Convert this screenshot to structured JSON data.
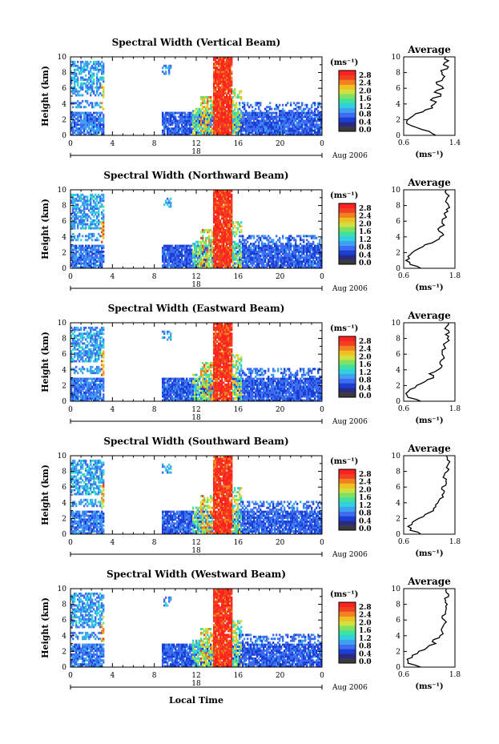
{
  "figure": {
    "x_axis_label": "Local Time",
    "date_label": "Aug 2006",
    "date_day": "18",
    "colorbar_unit": "(ms⁻¹)",
    "colorbar_ticks": [
      "2.8",
      "2.4",
      "2.0",
      "1.6",
      "1.2",
      "0.8",
      "0.4",
      "0.0"
    ],
    "colormap": [
      "#2a2a80",
      "#1b3fd4",
      "#3e6cf0",
      "#3fa0f0",
      "#30d0e0",
      "#40e0a0",
      "#80e060",
      "#d0e040",
      "#f0c020",
      "#f08020",
      "#f04020",
      "#ff2020"
    ]
  },
  "chart_data": [
    {
      "type": "heatmap",
      "title": "Spectral Width (Vertical Beam)",
      "ylabel": "Height (km)",
      "xlim": [
        0,
        24
      ],
      "ylim": [
        0,
        10
      ],
      "x_ticks": [
        "0",
        "4",
        "8",
        "12",
        "16",
        "20",
        "0"
      ],
      "y_ticks": [
        "0",
        "2",
        "4",
        "6",
        "8",
        "10"
      ],
      "colorbar_range": [
        0.0,
        3.0
      ],
      "average_profile": {
        "title": "Average",
        "xlabel": "(ms⁻¹)",
        "xlim": [
          0.6,
          1.4
        ],
        "x_ticks": [
          "0.6",
          "1.4"
        ],
        "y_ticks": [
          "0",
          "2",
          "4",
          "6",
          "8",
          "10"
        ],
        "height_km": [
          0,
          0.5,
          1,
          1.5,
          2,
          2.5,
          3,
          3.5,
          4,
          4.5,
          5,
          5.5,
          6,
          6.5,
          7,
          7.5,
          8,
          8.5,
          9,
          9.5,
          10
        ],
        "values": [
          1.1,
          1.0,
          0.8,
          0.65,
          0.66,
          0.75,
          0.9,
          1.05,
          1.08,
          1.02,
          1.18,
          1.08,
          1.22,
          1.12,
          1.2,
          1.24,
          1.2,
          1.28,
          1.22,
          1.3,
          1.25
        ]
      }
    },
    {
      "type": "heatmap",
      "title": "Spectral Width (Northward Beam)",
      "ylabel": "Height (km)",
      "xlim": [
        0,
        24
      ],
      "ylim": [
        0,
        10
      ],
      "x_ticks": [
        "0",
        "4",
        "8",
        "12",
        "16",
        "20",
        "0"
      ],
      "y_ticks": [
        "0",
        "2",
        "4",
        "6",
        "8",
        "10"
      ],
      "colorbar_range": [
        0.0,
        3.0
      ],
      "average_profile": {
        "title": "Average",
        "xlabel": "(ms⁻¹)",
        "xlim": [
          0.6,
          1.8
        ],
        "x_ticks": [
          "0.6",
          "1.8"
        ],
        "y_ticks": [
          "0",
          "2",
          "4",
          "6",
          "8",
          "10"
        ],
        "height_km": [
          0,
          0.5,
          1,
          1.5,
          2,
          2.5,
          3,
          3.5,
          4,
          4.5,
          5,
          5.5,
          6,
          6.5,
          7,
          7.5,
          8,
          8.5,
          9,
          9.5,
          10
        ],
        "values": [
          1.0,
          0.75,
          0.65,
          0.7,
          0.8,
          0.95,
          1.1,
          1.35,
          1.45,
          1.5,
          1.4,
          1.55,
          1.5,
          1.6,
          1.55,
          1.6,
          1.65,
          1.58,
          1.62,
          1.6,
          1.6
        ]
      }
    },
    {
      "type": "heatmap",
      "title": "Spectral Width (Eastward Beam)",
      "ylabel": "Height (km)",
      "xlim": [
        0,
        24
      ],
      "ylim": [
        0,
        10
      ],
      "x_ticks": [
        "0",
        "4",
        "8",
        "12",
        "16",
        "20",
        "0"
      ],
      "y_ticks": [
        "0",
        "2",
        "4",
        "6",
        "8",
        "10"
      ],
      "colorbar_range": [
        0.0,
        3.0
      ],
      "average_profile": {
        "title": "Average",
        "xlabel": "(ms⁻¹)",
        "xlim": [
          0.6,
          1.8
        ],
        "x_ticks": [
          "0.6",
          "1.8"
        ],
        "y_ticks": [
          "0",
          "2",
          "4",
          "6",
          "8",
          "10"
        ],
        "height_km": [
          0,
          0.5,
          1,
          1.5,
          2,
          2.5,
          3,
          3.5,
          4,
          4.5,
          5,
          5.5,
          6,
          6.5,
          7,
          7.5,
          8,
          8.5,
          9,
          9.5,
          10
        ],
        "values": [
          1.0,
          0.7,
          0.65,
          0.75,
          0.9,
          1.1,
          1.3,
          1.2,
          1.4,
          1.5,
          1.45,
          1.55,
          1.5,
          1.5,
          1.55,
          1.6,
          1.62,
          1.58,
          1.65,
          1.6,
          1.65
        ]
      }
    },
    {
      "type": "heatmap",
      "title": "Spectral Width (Southward Beam)",
      "ylabel": "Height (km)",
      "xlim": [
        0,
        24
      ],
      "ylim": [
        0,
        10
      ],
      "x_ticks": [
        "0",
        "4",
        "8",
        "12",
        "16",
        "20",
        "0"
      ],
      "y_ticks": [
        "0",
        "2",
        "4",
        "6",
        "8",
        "10"
      ],
      "colorbar_range": [
        0.0,
        3.0
      ],
      "average_profile": {
        "title": "Average",
        "xlabel": "(ms⁻¹)",
        "xlim": [
          0.6,
          1.8
        ],
        "x_ticks": [
          "0.6",
          "1.8"
        ],
        "y_ticks": [
          "0",
          "2",
          "4",
          "6",
          "8",
          "10"
        ],
        "height_km": [
          0,
          0.5,
          1,
          1.5,
          2,
          2.5,
          3,
          3.5,
          4,
          4.5,
          5,
          5.5,
          6,
          6.5,
          7,
          7.5,
          8,
          8.5,
          9,
          9.5,
          10
        ],
        "values": [
          1.0,
          0.75,
          0.7,
          0.8,
          0.95,
          1.1,
          1.3,
          1.35,
          1.4,
          1.45,
          1.5,
          1.55,
          1.5,
          1.6,
          1.6,
          1.55,
          1.62,
          1.6,
          1.65,
          1.62,
          1.6
        ]
      }
    },
    {
      "type": "heatmap",
      "title": "Spectral Width (Westward Beam)",
      "ylabel": "Height (km)",
      "xlim": [
        0,
        24
      ],
      "ylim": [
        0,
        10
      ],
      "x_ticks": [
        "0",
        "4",
        "8",
        "12",
        "16",
        "20",
        "0"
      ],
      "y_ticks": [
        "0",
        "2",
        "4",
        "6",
        "8",
        "10"
      ],
      "colorbar_range": [
        0.0,
        3.0
      ],
      "average_profile": {
        "title": "Average",
        "xlabel": "(ms⁻¹)",
        "xlim": [
          0.6,
          1.8
        ],
        "x_ticks": [
          "0.6",
          "1.8"
        ],
        "y_ticks": [
          "0",
          "2",
          "4",
          "6",
          "8",
          "10"
        ],
        "height_km": [
          0,
          0.5,
          1,
          1.5,
          2,
          2.5,
          3,
          3.5,
          4,
          4.5,
          5,
          5.5,
          6,
          6.5,
          7,
          7.5,
          8,
          8.5,
          9,
          9.5,
          10
        ],
        "values": [
          1.0,
          0.7,
          0.68,
          0.8,
          0.95,
          1.15,
          1.35,
          1.3,
          1.45,
          1.5,
          1.5,
          1.55,
          1.55,
          1.5,
          1.58,
          1.6,
          1.62,
          1.58,
          1.65,
          1.6,
          1.6
        ]
      }
    }
  ]
}
